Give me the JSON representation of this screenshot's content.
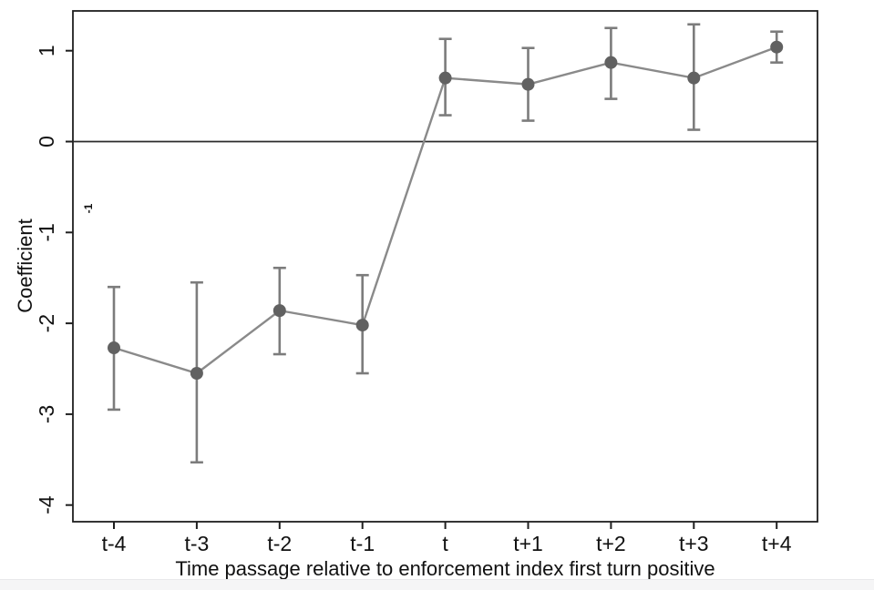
{
  "chart_data": {
    "type": "line",
    "title": "",
    "xlabel": "Time passage relative to enforcement index first turn positive",
    "ylabel": "Coefficient",
    "categories": [
      "t-4",
      "t-3",
      "t-2",
      "t-1",
      "t",
      "t+1",
      "t+2",
      "t+3",
      "t+4"
    ],
    "series": [
      {
        "name": "Coefficient",
        "values": [
          -2.27,
          -2.55,
          -1.86,
          -2.02,
          0.7,
          0.63,
          0.87,
          0.7,
          1.04
        ],
        "ci_low": [
          -2.95,
          -3.53,
          -2.34,
          -2.55,
          0.29,
          0.23,
          0.47,
          0.13,
          0.87
        ],
        "ci_high": [
          -1.6,
          -1.55,
          -1.39,
          -1.47,
          1.13,
          1.03,
          1.25,
          1.29,
          1.21
        ]
      }
    ],
    "yticks": [
      1,
      0,
      -1,
      -2,
      -3,
      -4
    ],
    "ylim": [
      -4.2,
      1.45
    ],
    "zero_line": true,
    "grid": false,
    "legend_position": "none",
    "annotation": {
      "text": "-1"
    },
    "colors": {
      "marker": "#616161",
      "line": "#8a8a8a",
      "error_bar": "#7c7c7c",
      "axis": "#1f1f1f",
      "zero_line": "#2b2b2b",
      "text": "#111111"
    }
  }
}
